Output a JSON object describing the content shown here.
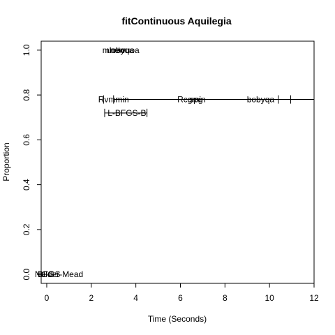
{
  "chart_data": {
    "type": "scatter",
    "title": "fitContinuous Aquilegia",
    "xlabel": "Time (Seconds)",
    "ylabel": "Proportion",
    "xlim": [
      -0.25,
      12
    ],
    "ylim": [
      -0.04,
      1.04
    ],
    "xticks": [
      "0",
      "2",
      "4",
      "6",
      "8",
      "10",
      "12"
    ],
    "yticks": [
      "0.0",
      "0.2",
      "0.4",
      "0.6",
      "0.8",
      "1.0"
    ],
    "grid": false,
    "legend": "none",
    "points": [
      {
        "label": "uobyqa",
        "x": 3.3,
        "y": 1.0
      },
      {
        "label": "newuoa",
        "x": 3.5,
        "y": 1.0
      },
      {
        "label": "mlmin",
        "x": 3.0,
        "y": 1.0
      },
      {
        "label": "Rvmmin",
        "x": 3.0,
        "y": 0.78
      },
      {
        "label": "Rcgmin",
        "x": 6.5,
        "y": 0.78
      },
      {
        "label": "spg",
        "x": 6.7,
        "y": 0.78
      },
      {
        "label": "bobyqa",
        "x": 9.6,
        "y": 0.78
      },
      {
        "label": "L-BFGS-B",
        "x": 3.6,
        "y": 0.72
      },
      {
        "label": "BFGS",
        "x": 0.1,
        "y": 0.0
      },
      {
        "label": "CG",
        "x": 0.05,
        "y": 0.0
      },
      {
        "label": "Nelder-Mead",
        "x": 0.55,
        "y": 0.0
      }
    ],
    "intervals": [
      {
        "x": [
          3.0,
          12.0
        ],
        "y": 0.78
      },
      {
        "x": [
          2.6,
          4.5
        ],
        "y": 0.72
      }
    ],
    "marks": [
      {
        "x": 2.55,
        "y": 0.78
      },
      {
        "x": 10.4,
        "y": 0.78
      },
      {
        "x": 10.95,
        "y": 0.78
      }
    ]
  }
}
